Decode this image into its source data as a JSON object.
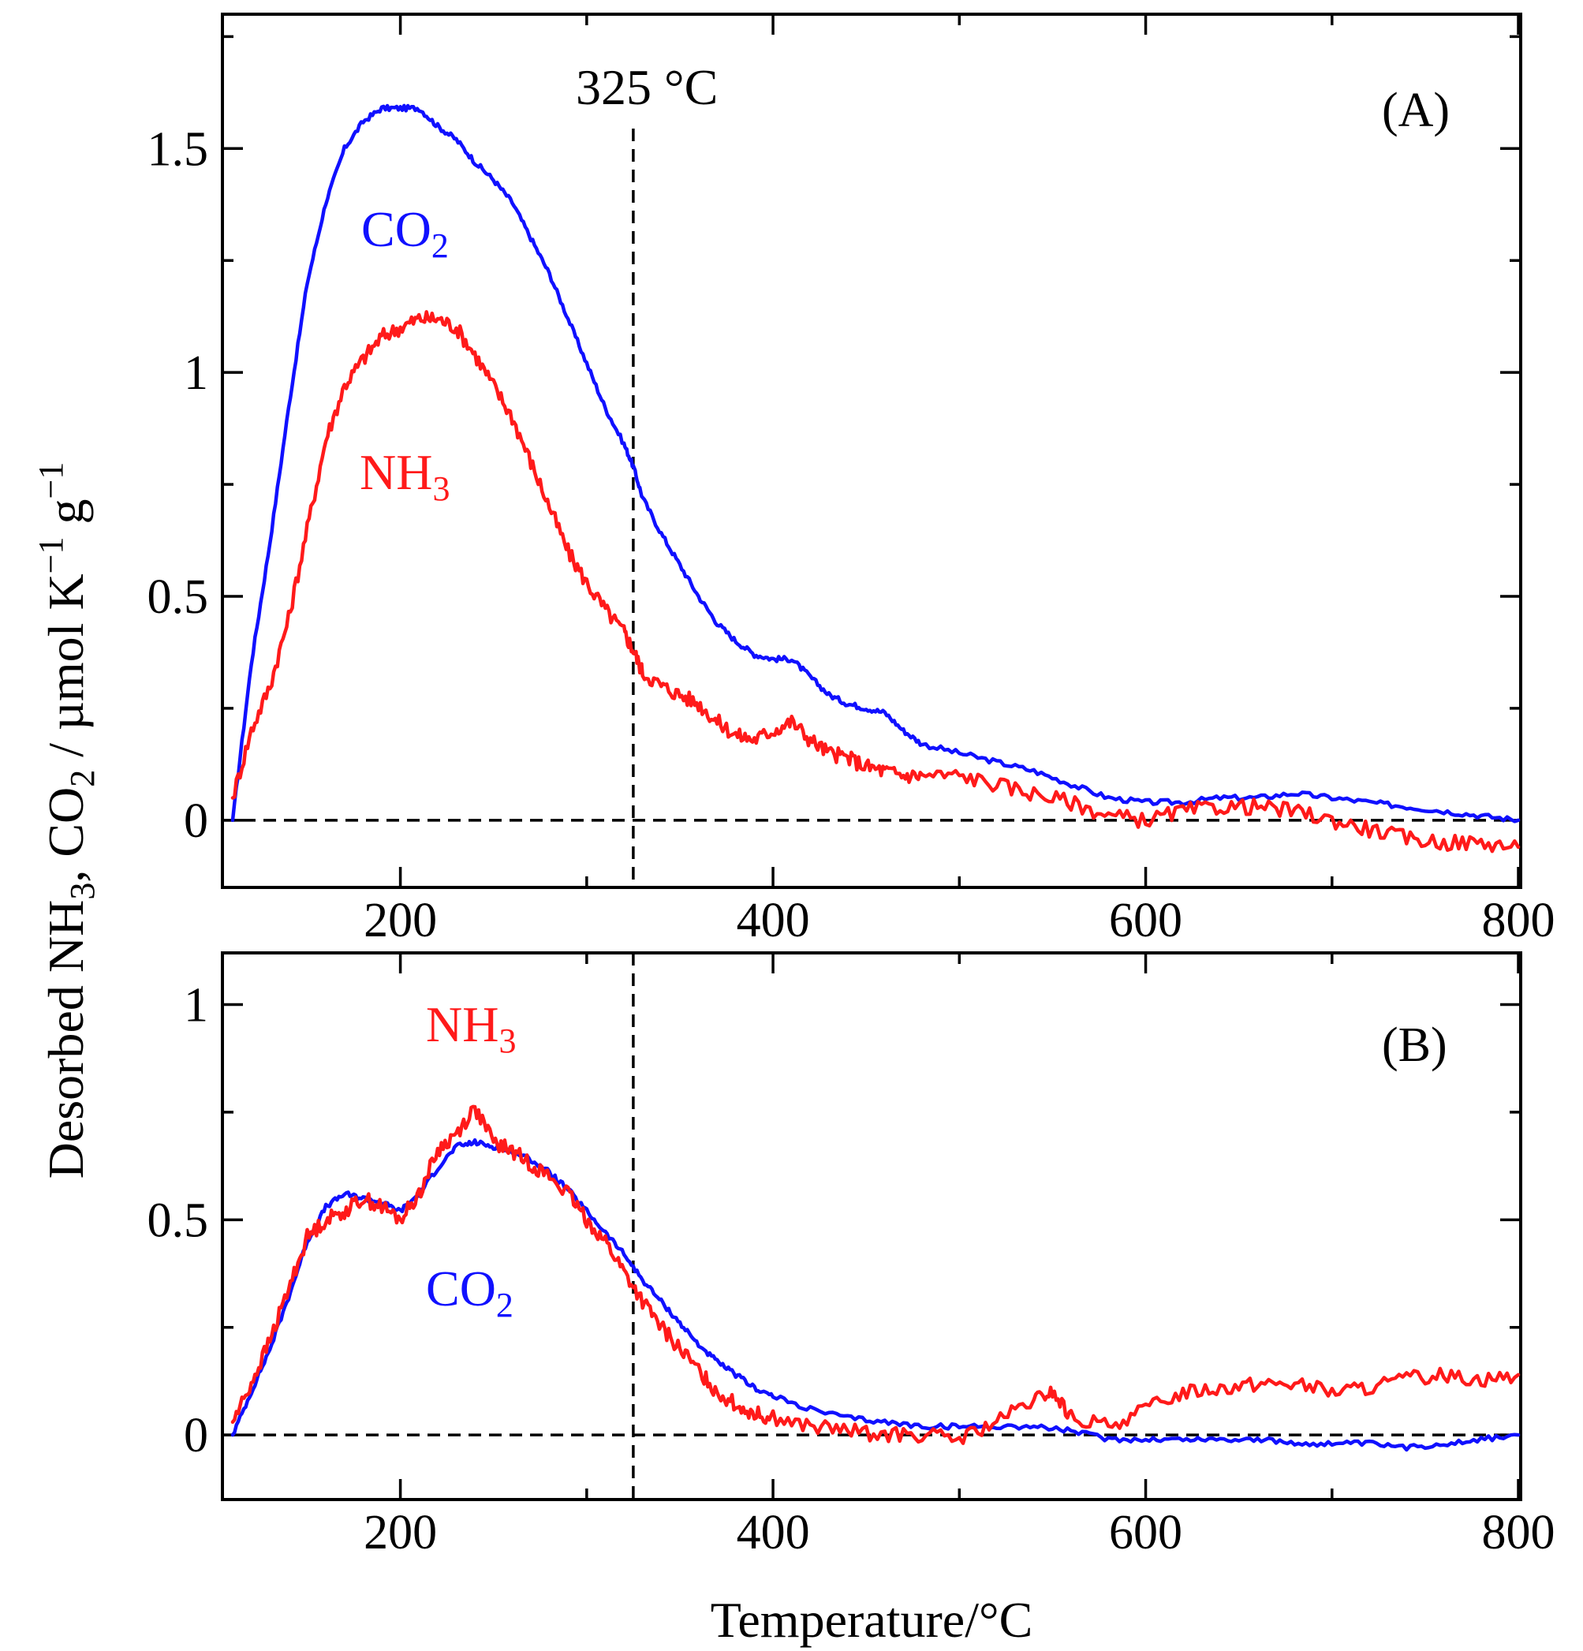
{
  "colors": {
    "nh3": "#ff1a1a",
    "co2": "#1010ff",
    "axis": "#000000"
  },
  "y_axis_title": {
    "part1": "Desorbed NH",
    "sub1": "3",
    "part2": ", CO",
    "sub2": "2",
    "part3": " / µmol K",
    "sup1": "−1",
    "part4": " g",
    "sup2": "−1"
  },
  "x_axis_title": "Temperature/°C",
  "chart_data": [
    {
      "panel": "(A)",
      "type": "line",
      "xlim": [
        110,
        800
      ],
      "ylim": [
        -0.15,
        1.8
      ],
      "x_ticks": [
        200,
        400,
        600,
        800
      ],
      "y_ticks": [
        0,
        0.5,
        1,
        1.5
      ],
      "y_tick_labels": [
        "0",
        "0.5",
        "1",
        "1.5"
      ],
      "x_tick_labels": [
        "200",
        "400",
        "600",
        "800"
      ],
      "reference_line_x": 325,
      "reference_label": "325 °C",
      "zero_line": true,
      "series": [
        {
          "name": "CO2",
          "label_main": "CO",
          "label_sub": "2",
          "color": "#1010ff",
          "x": [
            110,
            120,
            130,
            140,
            150,
            160,
            170,
            180,
            190,
            200,
            210,
            220,
            230,
            240,
            250,
            260,
            270,
            280,
            290,
            300,
            310,
            320,
            325,
            330,
            340,
            350,
            360,
            370,
            380,
            390,
            400,
            410,
            420,
            430,
            440,
            450,
            460,
            470,
            480,
            500,
            520,
            540,
            560,
            580,
            600,
            620,
            640,
            660,
            680,
            700,
            720,
            740,
            760,
            780,
            800
          ],
          "y": [
            0.0,
            0.35,
            0.62,
            0.92,
            1.2,
            1.38,
            1.5,
            1.56,
            1.59,
            1.59,
            1.59,
            1.55,
            1.52,
            1.47,
            1.43,
            1.38,
            1.3,
            1.22,
            1.12,
            1.02,
            0.92,
            0.84,
            0.79,
            0.72,
            0.64,
            0.57,
            0.5,
            0.44,
            0.4,
            0.37,
            0.36,
            0.36,
            0.32,
            0.28,
            0.26,
            0.25,
            0.24,
            0.2,
            0.17,
            0.15,
            0.13,
            0.11,
            0.08,
            0.05,
            0.04,
            0.04,
            0.05,
            0.05,
            0.06,
            0.05,
            0.04,
            0.03,
            0.02,
            0.01,
            0.0
          ]
        },
        {
          "name": "NH3",
          "label_main": "NH",
          "label_sub": "3",
          "color": "#ff1a1a",
          "x": [
            110,
            120,
            130,
            140,
            150,
            160,
            170,
            180,
            190,
            200,
            210,
            220,
            230,
            240,
            250,
            260,
            270,
            280,
            290,
            300,
            310,
            320,
            325,
            330,
            340,
            350,
            360,
            370,
            380,
            390,
            400,
            410,
            420,
            430,
            440,
            450,
            460,
            470,
            480,
            500,
            520,
            540,
            560,
            580,
            600,
            620,
            640,
            660,
            680,
            700,
            720,
            740,
            760,
            780,
            800
          ],
          "y": [
            0.05,
            0.2,
            0.3,
            0.45,
            0.65,
            0.85,
            0.97,
            1.03,
            1.08,
            1.1,
            1.12,
            1.12,
            1.1,
            1.04,
            0.97,
            0.9,
            0.8,
            0.7,
            0.6,
            0.53,
            0.47,
            0.42,
            0.38,
            0.33,
            0.3,
            0.28,
            0.26,
            0.22,
            0.19,
            0.18,
            0.2,
            0.22,
            0.18,
            0.15,
            0.14,
            0.12,
            0.11,
            0.1,
            0.1,
            0.1,
            0.08,
            0.06,
            0.04,
            0.01,
            0.0,
            0.02,
            0.03,
            0.03,
            0.02,
            0.0,
            -0.02,
            -0.04,
            -0.05,
            -0.05,
            -0.06
          ]
        }
      ]
    },
    {
      "panel": "(B)",
      "type": "line",
      "xlim": [
        110,
        800
      ],
      "ylim": [
        -0.15,
        1.12
      ],
      "x_ticks": [
        200,
        400,
        600,
        800
      ],
      "y_ticks": [
        0,
        0.5,
        1
      ],
      "y_tick_labels": [
        "0",
        "0.5",
        "1"
      ],
      "x_tick_labels": [
        "200",
        "400",
        "600",
        "800"
      ],
      "reference_line_x": 325,
      "zero_line": true,
      "series": [
        {
          "name": "CO2",
          "label_main": "CO",
          "label_sub": "2",
          "color": "#1010ff",
          "x": [
            110,
            120,
            130,
            140,
            150,
            160,
            170,
            180,
            190,
            200,
            210,
            220,
            230,
            240,
            250,
            260,
            270,
            280,
            290,
            300,
            310,
            320,
            330,
            340,
            350,
            360,
            370,
            380,
            390,
            400,
            420,
            440,
            460,
            480,
            500,
            520,
            540,
            560,
            580,
            600,
            620,
            640,
            660,
            680,
            700,
            720,
            740,
            760,
            780,
            800
          ],
          "y": [
            0.0,
            0.1,
            0.2,
            0.32,
            0.45,
            0.53,
            0.56,
            0.55,
            0.54,
            0.52,
            0.56,
            0.62,
            0.67,
            0.68,
            0.67,
            0.66,
            0.64,
            0.61,
            0.57,
            0.52,
            0.47,
            0.42,
            0.36,
            0.31,
            0.26,
            0.21,
            0.17,
            0.14,
            0.11,
            0.09,
            0.06,
            0.04,
            0.03,
            0.02,
            0.02,
            0.02,
            0.02,
            0.01,
            -0.01,
            -0.01,
            -0.01,
            -0.01,
            -0.01,
            -0.02,
            -0.02,
            -0.02,
            -0.03,
            -0.02,
            -0.01,
            0.0
          ]
        },
        {
          "name": "NH3",
          "label_main": "NH",
          "label_sub": "3",
          "color": "#ff1a1a",
          "x": [
            110,
            120,
            130,
            140,
            150,
            160,
            170,
            180,
            190,
            200,
            210,
            220,
            230,
            240,
            250,
            260,
            270,
            280,
            290,
            300,
            310,
            320,
            330,
            340,
            350,
            360,
            370,
            380,
            390,
            400,
            420,
            440,
            460,
            480,
            500,
            520,
            540,
            550,
            560,
            580,
            600,
            620,
            640,
            660,
            680,
            700,
            720,
            740,
            760,
            780,
            800
          ],
          "y": [
            0.03,
            0.12,
            0.22,
            0.34,
            0.46,
            0.5,
            0.52,
            0.55,
            0.53,
            0.5,
            0.56,
            0.66,
            0.7,
            0.76,
            0.68,
            0.66,
            0.63,
            0.6,
            0.56,
            0.5,
            0.45,
            0.38,
            0.31,
            0.25,
            0.2,
            0.15,
            0.1,
            0.07,
            0.05,
            0.04,
            0.02,
            0.01,
            0.0,
            0.0,
            -0.01,
            0.03,
            0.08,
            0.1,
            0.04,
            0.02,
            0.06,
            0.1,
            0.11,
            0.12,
            0.12,
            0.1,
            0.11,
            0.13,
            0.14,
            0.13,
            0.14
          ]
        }
      ]
    }
  ]
}
